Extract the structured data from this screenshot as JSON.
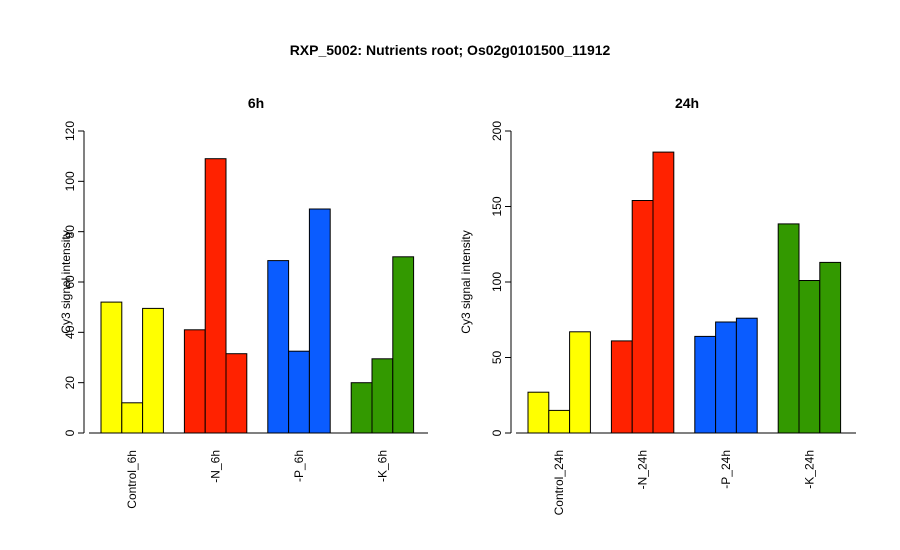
{
  "figure": {
    "title": "RXP_5002: Nutrients root; Os02g0101500_11912"
  },
  "chart_data": [
    {
      "type": "bar",
      "title": "6h",
      "xlabel": "",
      "ylabel": "Cy3 signal intensity",
      "ylim": [
        0,
        120
      ],
      "yticks": [
        0,
        20,
        40,
        60,
        80,
        100,
        120
      ],
      "categories": [
        "Control_6h",
        "-N_6h",
        "-P_6h",
        "-K_6h"
      ],
      "colors": [
        "#ffff00",
        "#ff2200",
        "#0a5cff",
        "#339900"
      ],
      "groups": [
        {
          "category": "Control_6h",
          "values": [
            52,
            12,
            49.5
          ]
        },
        {
          "category": "-N_6h",
          "values": [
            41,
            109,
            31.5
          ]
        },
        {
          "category": "-P_6h",
          "values": [
            68.5,
            32.5,
            89
          ]
        },
        {
          "category": "-K_6h",
          "values": [
            20,
            29.5,
            70
          ]
        }
      ],
      "grid": false,
      "legend": "none"
    },
    {
      "type": "bar",
      "title": "24h",
      "xlabel": "",
      "ylabel": "Cy3 signal intensity",
      "ylim": [
        0,
        200
      ],
      "yticks": [
        0,
        50,
        100,
        150,
        200
      ],
      "categories": [
        "Control_24h",
        "-N_24h",
        "-P_24h",
        "-K_24h"
      ],
      "colors": [
        "#ffff00",
        "#ff2200",
        "#0a5cff",
        "#339900"
      ],
      "groups": [
        {
          "category": "Control_24h",
          "values": [
            27,
            15,
            67
          ]
        },
        {
          "category": "-N_24h",
          "values": [
            61,
            154,
            186
          ]
        },
        {
          "category": "-P_24h",
          "values": [
            64,
            73.5,
            76
          ]
        },
        {
          "category": "-K_24h",
          "values": [
            138.5,
            101,
            113
          ]
        }
      ],
      "grid": false,
      "legend": "none"
    }
  ]
}
